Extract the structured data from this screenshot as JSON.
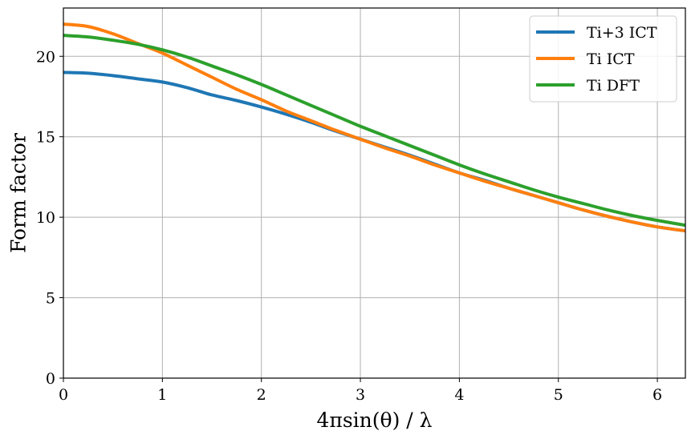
{
  "chart_data": {
    "type": "line",
    "title": "",
    "xlabel": "4πsin(θ) / λ",
    "ylabel": "Form factor",
    "xlim": [
      0,
      6.283
    ],
    "ylim": [
      0,
      23
    ],
    "xticks": [
      "0",
      "1",
      "2",
      "3",
      "4",
      "5",
      "6"
    ],
    "yticks": [
      "0",
      "5",
      "10",
      "15",
      "20"
    ],
    "grid": true,
    "legend_position": "top-right",
    "x": [
      0,
      0.25,
      0.5,
      0.75,
      1.0,
      1.25,
      1.5,
      1.75,
      2.0,
      2.25,
      2.5,
      2.75,
      3.0,
      3.25,
      3.5,
      3.75,
      4.0,
      4.25,
      4.5,
      4.75,
      5.0,
      5.25,
      5.5,
      5.75,
      6.0,
      6.283
    ],
    "series": [
      {
        "name": "Ti+3 ICT",
        "color": "#1f77b4",
        "values": [
          19.0,
          18.95,
          18.8,
          18.6,
          18.4,
          18.05,
          17.6,
          17.25,
          16.85,
          16.4,
          15.9,
          15.35,
          14.85,
          14.35,
          13.85,
          13.3,
          12.75,
          12.3,
          11.8,
          11.35,
          10.9,
          10.45,
          10.05,
          9.7,
          9.4,
          9.15
        ]
      },
      {
        "name": "Ti ICT",
        "color": "#ff7f0e",
        "values": [
          22.0,
          21.85,
          21.4,
          20.8,
          20.2,
          19.45,
          18.7,
          17.95,
          17.3,
          16.6,
          16.0,
          15.4,
          14.85,
          14.3,
          13.8,
          13.25,
          12.75,
          12.25,
          11.8,
          11.35,
          10.9,
          10.45,
          10.05,
          9.7,
          9.4,
          9.15
        ]
      },
      {
        "name": "Ti DFT",
        "color": "#2ca02c",
        "values": [
          21.3,
          21.2,
          21.0,
          20.75,
          20.4,
          19.95,
          19.4,
          18.85,
          18.25,
          17.6,
          16.95,
          16.3,
          15.65,
          15.05,
          14.45,
          13.85,
          13.25,
          12.7,
          12.2,
          11.7,
          11.25,
          10.85,
          10.45,
          10.1,
          9.8,
          9.5
        ]
      }
    ]
  }
}
